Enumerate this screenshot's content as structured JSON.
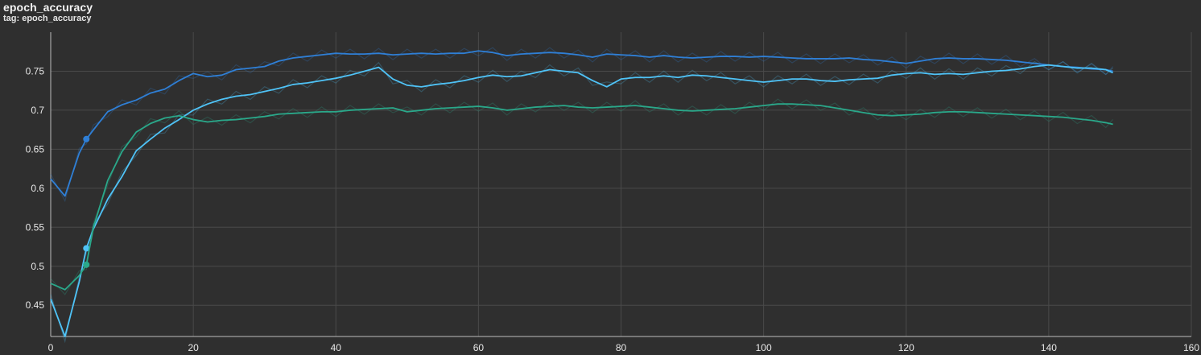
{
  "header": {
    "title": "epoch_accuracy",
    "tag": "tag: epoch_accuracy"
  },
  "chart_data": {
    "type": "line",
    "title": "epoch_accuracy",
    "xlabel": "",
    "ylabel": "",
    "xlim": [
      0,
      160
    ],
    "ylim": [
      0.41,
      0.8
    ],
    "grid": true,
    "background": "#2f2f2f",
    "grid_color": "#4a4a4a",
    "x_ticks": [
      0,
      20,
      40,
      60,
      80,
      100,
      120,
      140,
      160
    ],
    "y_ticks": [
      0.45,
      0.5,
      0.55,
      0.6,
      0.65,
      0.7,
      0.75
    ],
    "y_tick_labels": [
      "0.45",
      "0.5",
      "0.55",
      "0.6",
      "0.65",
      "0.7",
      "0.75"
    ],
    "x": [
      0,
      2,
      4,
      5,
      6,
      8,
      10,
      12,
      14,
      16,
      18,
      20,
      22,
      24,
      26,
      28,
      30,
      32,
      34,
      36,
      38,
      40,
      42,
      44,
      46,
      48,
      50,
      52,
      54,
      56,
      58,
      60,
      62,
      64,
      66,
      68,
      70,
      72,
      74,
      76,
      78,
      80,
      82,
      84,
      86,
      88,
      90,
      92,
      94,
      96,
      98,
      100,
      102,
      104,
      106,
      108,
      110,
      112,
      114,
      116,
      118,
      120,
      122,
      124,
      126,
      128,
      130,
      132,
      134,
      136,
      138,
      140,
      142,
      144,
      146,
      148,
      149
    ],
    "series": [
      {
        "color": "#2f7fd6",
        "marker_x": 5,
        "values": [
          0.612,
          0.59,
          0.645,
          0.663,
          0.675,
          0.698,
          0.707,
          0.713,
          0.722,
          0.727,
          0.738,
          0.747,
          0.743,
          0.745,
          0.752,
          0.754,
          0.756,
          0.763,
          0.767,
          0.769,
          0.771,
          0.773,
          0.772,
          0.772,
          0.773,
          0.771,
          0.772,
          0.773,
          0.772,
          0.773,
          0.773,
          0.776,
          0.774,
          0.77,
          0.772,
          0.773,
          0.774,
          0.773,
          0.771,
          0.768,
          0.772,
          0.771,
          0.77,
          0.768,
          0.77,
          0.768,
          0.767,
          0.768,
          0.769,
          0.769,
          0.768,
          0.769,
          0.768,
          0.767,
          0.766,
          0.766,
          0.766,
          0.767,
          0.765,
          0.764,
          0.762,
          0.76,
          0.763,
          0.766,
          0.767,
          0.766,
          0.766,
          0.765,
          0.764,
          0.762,
          0.76,
          0.758,
          0.756,
          0.755,
          0.753,
          0.752,
          0.75
        ]
      },
      {
        "color": "#4fc3f7",
        "marker_x": 5,
        "values": [
          0.458,
          0.41,
          0.48,
          0.523,
          0.548,
          0.586,
          0.615,
          0.648,
          0.663,
          0.677,
          0.688,
          0.7,
          0.708,
          0.714,
          0.718,
          0.72,
          0.724,
          0.728,
          0.733,
          0.735,
          0.738,
          0.741,
          0.745,
          0.75,
          0.755,
          0.74,
          0.732,
          0.73,
          0.733,
          0.735,
          0.738,
          0.742,
          0.745,
          0.743,
          0.744,
          0.748,
          0.752,
          0.75,
          0.748,
          0.738,
          0.73,
          0.74,
          0.742,
          0.742,
          0.744,
          0.742,
          0.745,
          0.744,
          0.742,
          0.74,
          0.738,
          0.736,
          0.738,
          0.74,
          0.74,
          0.738,
          0.737,
          0.739,
          0.74,
          0.741,
          0.745,
          0.747,
          0.748,
          0.746,
          0.747,
          0.746,
          0.748,
          0.75,
          0.751,
          0.753,
          0.756,
          0.758,
          0.756,
          0.754,
          0.754,
          0.752,
          0.748
        ]
      },
      {
        "color": "#2aa88a",
        "marker_x": 5,
        "values": [
          0.478,
          0.47,
          0.488,
          0.502,
          0.55,
          0.61,
          0.647,
          0.672,
          0.683,
          0.69,
          0.693,
          0.688,
          0.685,
          0.687,
          0.688,
          0.69,
          0.692,
          0.695,
          0.696,
          0.697,
          0.698,
          0.698,
          0.7,
          0.701,
          0.702,
          0.703,
          0.698,
          0.7,
          0.702,
          0.703,
          0.704,
          0.705,
          0.703,
          0.7,
          0.702,
          0.704,
          0.705,
          0.706,
          0.704,
          0.703,
          0.704,
          0.705,
          0.706,
          0.704,
          0.702,
          0.7,
          0.699,
          0.7,
          0.701,
          0.702,
          0.704,
          0.706,
          0.708,
          0.708,
          0.707,
          0.706,
          0.703,
          0.7,
          0.697,
          0.694,
          0.693,
          0.694,
          0.695,
          0.697,
          0.698,
          0.698,
          0.697,
          0.696,
          0.695,
          0.694,
          0.693,
          0.692,
          0.691,
          0.689,
          0.687,
          0.684,
          0.682
        ]
      }
    ]
  }
}
